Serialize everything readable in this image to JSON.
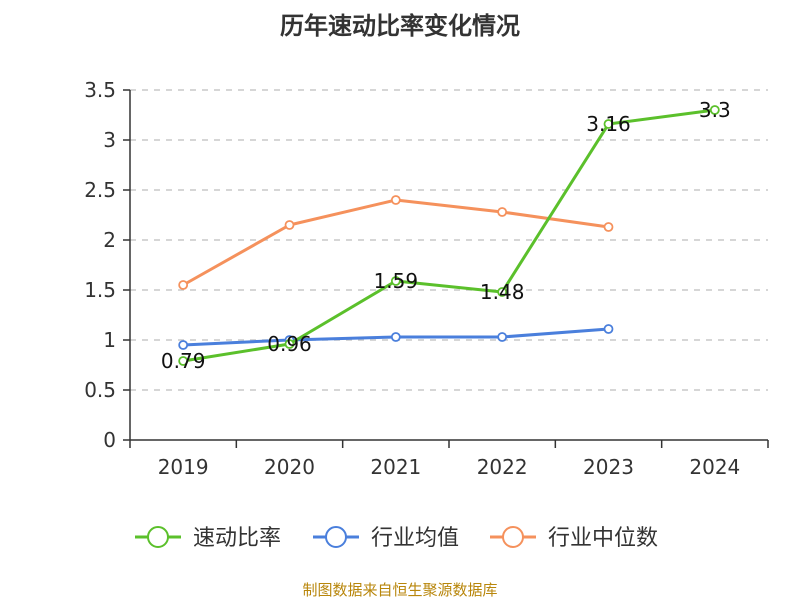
{
  "chart_data": {
    "type": "line",
    "title": "历年速动比率变化情况",
    "categories": [
      "2019",
      "2020",
      "2021",
      "2022",
      "2023",
      "2024"
    ],
    "ylim": [
      0,
      3.5
    ],
    "yticks": [
      "0",
      "0.5",
      "1",
      "1.5",
      "2",
      "2.5",
      "3",
      "3.5"
    ],
    "grid": true,
    "legend_position": "bottom",
    "series": [
      {
        "name": "速动比率",
        "color": "#5bc02b",
        "values": [
          0.79,
          0.96,
          1.59,
          1.48,
          3.16,
          3.3
        ],
        "labels": [
          "0.79",
          "0.96",
          "1.59",
          "1.48",
          "3.16",
          "3.3"
        ]
      },
      {
        "name": "行业均值",
        "color": "#4a7fdc",
        "values": [
          0.95,
          1.0,
          1.03,
          1.03,
          1.11,
          null
        ]
      },
      {
        "name": "行业中位数",
        "color": "#f5915c",
        "values": [
          1.55,
          2.15,
          2.4,
          2.28,
          2.13,
          null
        ]
      }
    ]
  },
  "footer": {
    "source": "制图数据来自恒生聚源数据库"
  }
}
